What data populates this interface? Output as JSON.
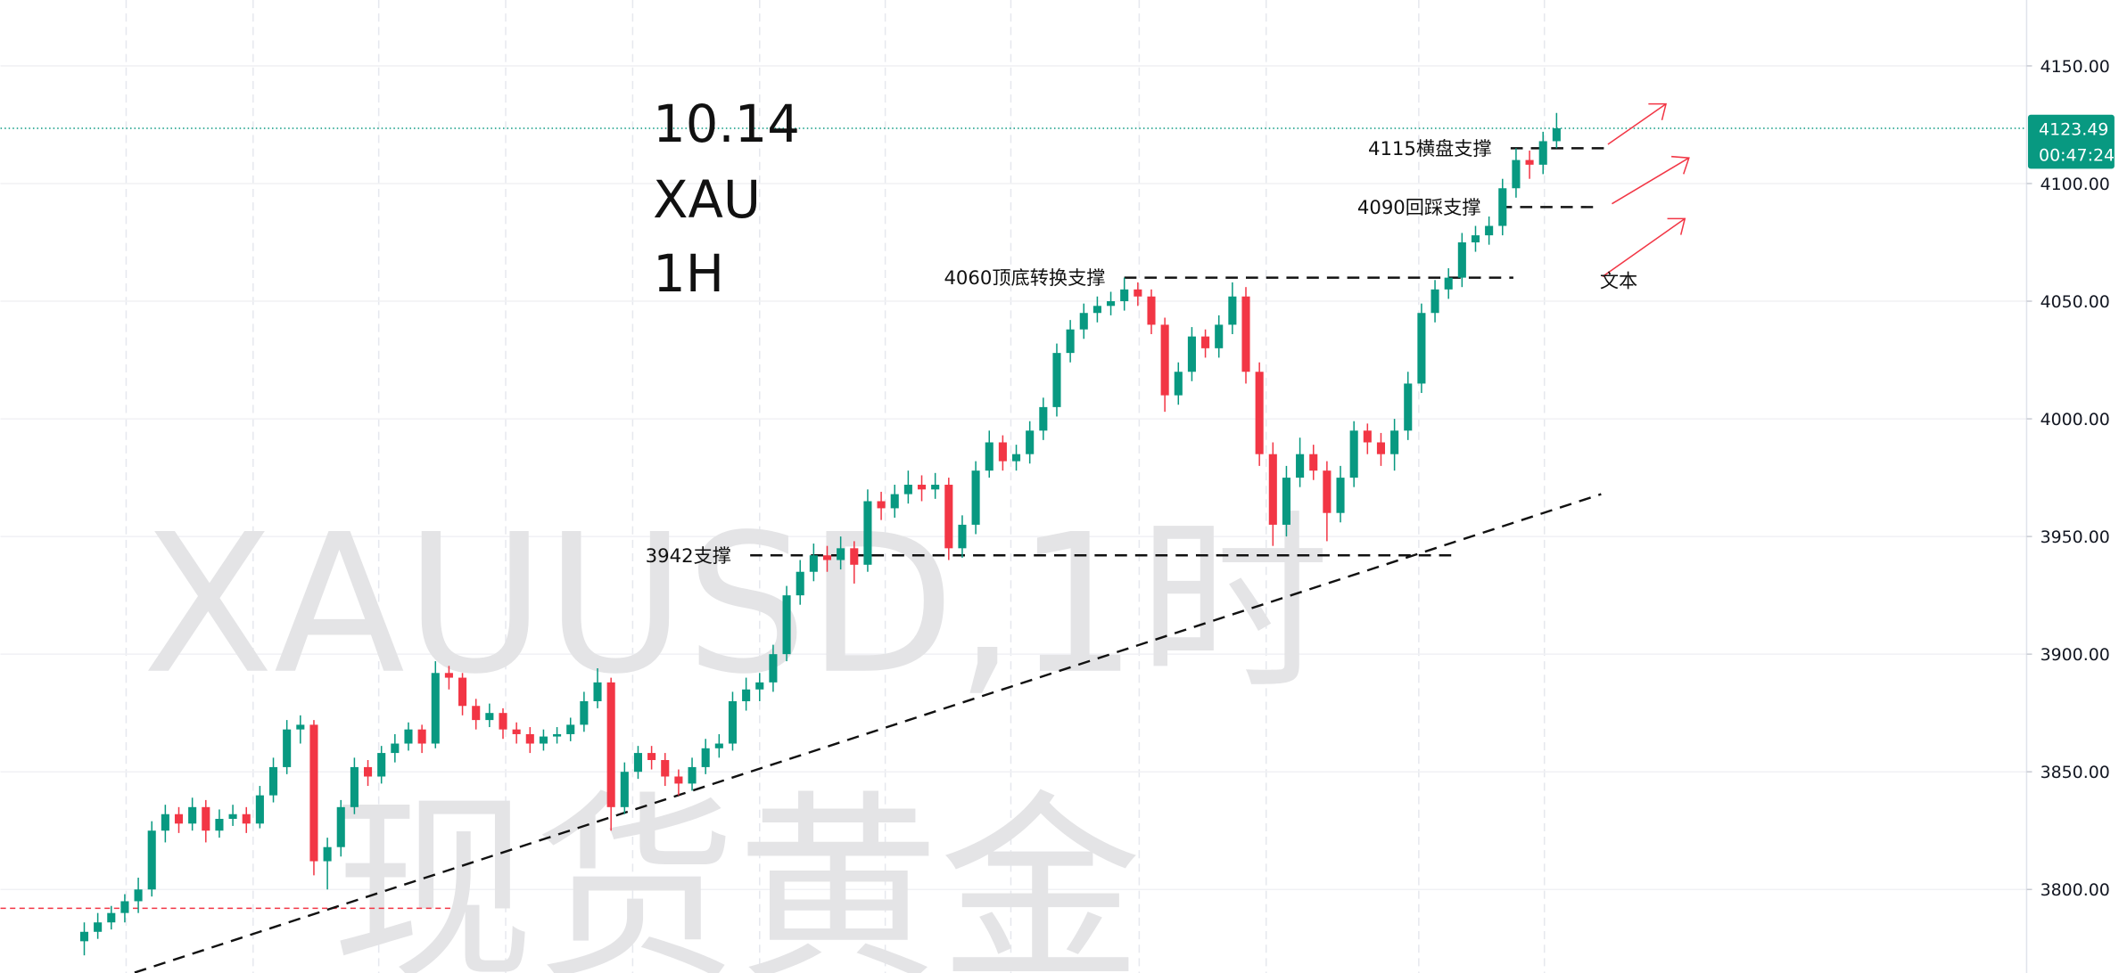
{
  "chart_data": {
    "type": "candlestick",
    "watermark": [
      "XAUUSD,1时",
      "现货黄金"
    ],
    "headline": [
      "10.14",
      "XAU",
      "1H"
    ],
    "ylim": [
      3764.5,
      4178
    ],
    "yticks": [
      {
        "value": 4150,
        "label": "4150.00"
      },
      {
        "value": 4100,
        "label": "4100.00"
      },
      {
        "value": 4050,
        "label": "4050.00"
      },
      {
        "value": 4000,
        "label": "4000.00"
      },
      {
        "value": 3950,
        "label": "3950.00"
      },
      {
        "value": 3900,
        "label": "3900.00"
      },
      {
        "value": 3850,
        "label": "3850.00"
      },
      {
        "value": 3800,
        "label": "3800.00"
      }
    ],
    "grid": true,
    "up_color": "#089981",
    "down_color": "#f23645",
    "last_price": {
      "value": 4123.49,
      "label": "4123.49",
      "countdown": "00:47:24"
    },
    "levels": [
      {
        "label": "4115横盘支撑",
        "value": 4115
      },
      {
        "label": "4090回踩支撑",
        "value": 4090
      },
      {
        "label": "4060顶底转换支撑",
        "value": 4060
      },
      {
        "label": "3942支撑",
        "value": 3942
      }
    ],
    "trendline": [
      3762,
      3968
    ],
    "alert_line": 3792,
    "note": "文本",
    "candles": [
      [
        3778,
        3786,
        3772,
        3782
      ],
      [
        3782,
        3790,
        3779,
        3786
      ],
      [
        3786,
        3793,
        3783,
        3790
      ],
      [
        3790,
        3798,
        3786,
        3795
      ],
      [
        3795,
        3805,
        3790,
        3800
      ],
      [
        3800,
        3829,
        3797,
        3825
      ],
      [
        3825,
        3836,
        3820,
        3832
      ],
      [
        3832,
        3835,
        3824,
        3828
      ],
      [
        3828,
        3839,
        3825,
        3835
      ],
      [
        3835,
        3838,
        3820,
        3825
      ],
      [
        3825,
        3834,
        3822,
        3830
      ],
      [
        3830,
        3836,
        3827,
        3832
      ],
      [
        3832,
        3835,
        3824,
        3828
      ],
      [
        3828,
        3844,
        3826,
        3840
      ],
      [
        3840,
        3856,
        3837,
        3852
      ],
      [
        3852,
        3872,
        3849,
        3868
      ],
      [
        3868,
        3874,
        3862,
        3870
      ],
      [
        3870,
        3872,
        3806,
        3812
      ],
      [
        3812,
        3822,
        3800,
        3818
      ],
      [
        3818,
        3838,
        3814,
        3835
      ],
      [
        3835,
        3856,
        3832,
        3852
      ],
      [
        3852,
        3855,
        3844,
        3848
      ],
      [
        3848,
        3861,
        3845,
        3858
      ],
      [
        3858,
        3866,
        3854,
        3862
      ],
      [
        3862,
        3871,
        3859,
        3868
      ],
      [
        3868,
        3870,
        3858,
        3862
      ],
      [
        3862,
        3897,
        3860,
        3892
      ],
      [
        3892,
        3895,
        3885,
        3890
      ],
      [
        3890,
        3892,
        3874,
        3878
      ],
      [
        3878,
        3881,
        3868,
        3872
      ],
      [
        3872,
        3879,
        3869,
        3875
      ],
      [
        3875,
        3877,
        3864,
        3868
      ],
      [
        3868,
        3871,
        3862,
        3866
      ],
      [
        3866,
        3869,
        3858,
        3862
      ],
      [
        3862,
        3868,
        3859,
        3865
      ],
      [
        3865,
        3869,
        3862,
        3866
      ],
      [
        3866,
        3873,
        3863,
        3870
      ],
      [
        3870,
        3884,
        3867,
        3880
      ],
      [
        3880,
        3894,
        3877,
        3888
      ],
      [
        3888,
        3890,
        3825,
        3835
      ],
      [
        3835,
        3854,
        3832,
        3850
      ],
      [
        3850,
        3861,
        3847,
        3858
      ],
      [
        3858,
        3861,
        3851,
        3855
      ],
      [
        3855,
        3858,
        3844,
        3848
      ],
      [
        3848,
        3851,
        3840,
        3845
      ],
      [
        3845,
        3856,
        3842,
        3852
      ],
      [
        3852,
        3864,
        3849,
        3860
      ],
      [
        3860,
        3866,
        3856,
        3862
      ],
      [
        3862,
        3884,
        3859,
        3880
      ],
      [
        3880,
        3890,
        3876,
        3885
      ],
      [
        3885,
        3892,
        3880,
        3888
      ],
      [
        3888,
        3904,
        3884,
        3900
      ],
      [
        3900,
        3929,
        3897,
        3925
      ],
      [
        3925,
        3940,
        3921,
        3935
      ],
      [
        3935,
        3947,
        3931,
        3942
      ],
      [
        3942,
        3946,
        3935,
        3940
      ],
      [
        3940,
        3950,
        3936,
        3945
      ],
      [
        3945,
        3948,
        3930,
        3938
      ],
      [
        3938,
        3970,
        3935,
        3965
      ],
      [
        3965,
        3969,
        3957,
        3962
      ],
      [
        3962,
        3972,
        3958,
        3968
      ],
      [
        3968,
        3978,
        3964,
        3972
      ],
      [
        3972,
        3976,
        3965,
        3970
      ],
      [
        3970,
        3977,
        3966,
        3972
      ],
      [
        3972,
        3975,
        3940,
        3945
      ],
      [
        3945,
        3959,
        3941,
        3955
      ],
      [
        3955,
        3982,
        3951,
        3978
      ],
      [
        3978,
        3995,
        3975,
        3990
      ],
      [
        3990,
        3993,
        3978,
        3982
      ],
      [
        3982,
        3989,
        3978,
        3985
      ],
      [
        3985,
        3999,
        3981,
        3995
      ],
      [
        3995,
        4009,
        3991,
        4005
      ],
      [
        4005,
        4032,
        4001,
        4028
      ],
      [
        4028,
        4042,
        4024,
        4038
      ],
      [
        4038,
        4049,
        4034,
        4045
      ],
      [
        4045,
        4052,
        4041,
        4048
      ],
      [
        4048,
        4054,
        4044,
        4050
      ],
      [
        4050,
        4060,
        4046,
        4055
      ],
      [
        4055,
        4058,
        4048,
        4052
      ],
      [
        4052,
        4055,
        4036,
        4040
      ],
      [
        4040,
        4043,
        4003,
        4010
      ],
      [
        4010,
        4024,
        4006,
        4020
      ],
      [
        4020,
        4039,
        4016,
        4035
      ],
      [
        4035,
        4038,
        4026,
        4030
      ],
      [
        4030,
        4044,
        4026,
        4040
      ],
      [
        4040,
        4058,
        4036,
        4052
      ],
      [
        4052,
        4056,
        4015,
        4020
      ],
      [
        4020,
        4024,
        3980,
        3985
      ],
      [
        3985,
        3990,
        3946,
        3955
      ],
      [
        3955,
        3980,
        3950,
        3975
      ],
      [
        3975,
        3992,
        3971,
        3985
      ],
      [
        3985,
        3989,
        3974,
        3978
      ],
      [
        3978,
        3982,
        3948,
        3960
      ],
      [
        3960,
        3980,
        3956,
        3975
      ],
      [
        3975,
        3999,
        3971,
        3995
      ],
      [
        3995,
        3998,
        3985,
        3990
      ],
      [
        3990,
        3994,
        3980,
        3985
      ],
      [
        3985,
        4000,
        3978,
        3995
      ],
      [
        3995,
        4020,
        3991,
        4015
      ],
      [
        4015,
        4049,
        4011,
        4045
      ],
      [
        4045,
        4059,
        4041,
        4055
      ],
      [
        4055,
        4064,
        4051,
        4060
      ],
      [
        4060,
        4079,
        4056,
        4075
      ],
      [
        4075,
        4082,
        4071,
        4078
      ],
      [
        4078,
        4086,
        4074,
        4082
      ],
      [
        4082,
        4102,
        4078,
        4098
      ],
      [
        4098,
        4115,
        4094,
        4110
      ],
      [
        4110,
        4114,
        4102,
        4108
      ],
      [
        4108,
        4122,
        4104,
        4118
      ],
      [
        4118,
        4130,
        4115,
        4123.49
      ]
    ]
  }
}
